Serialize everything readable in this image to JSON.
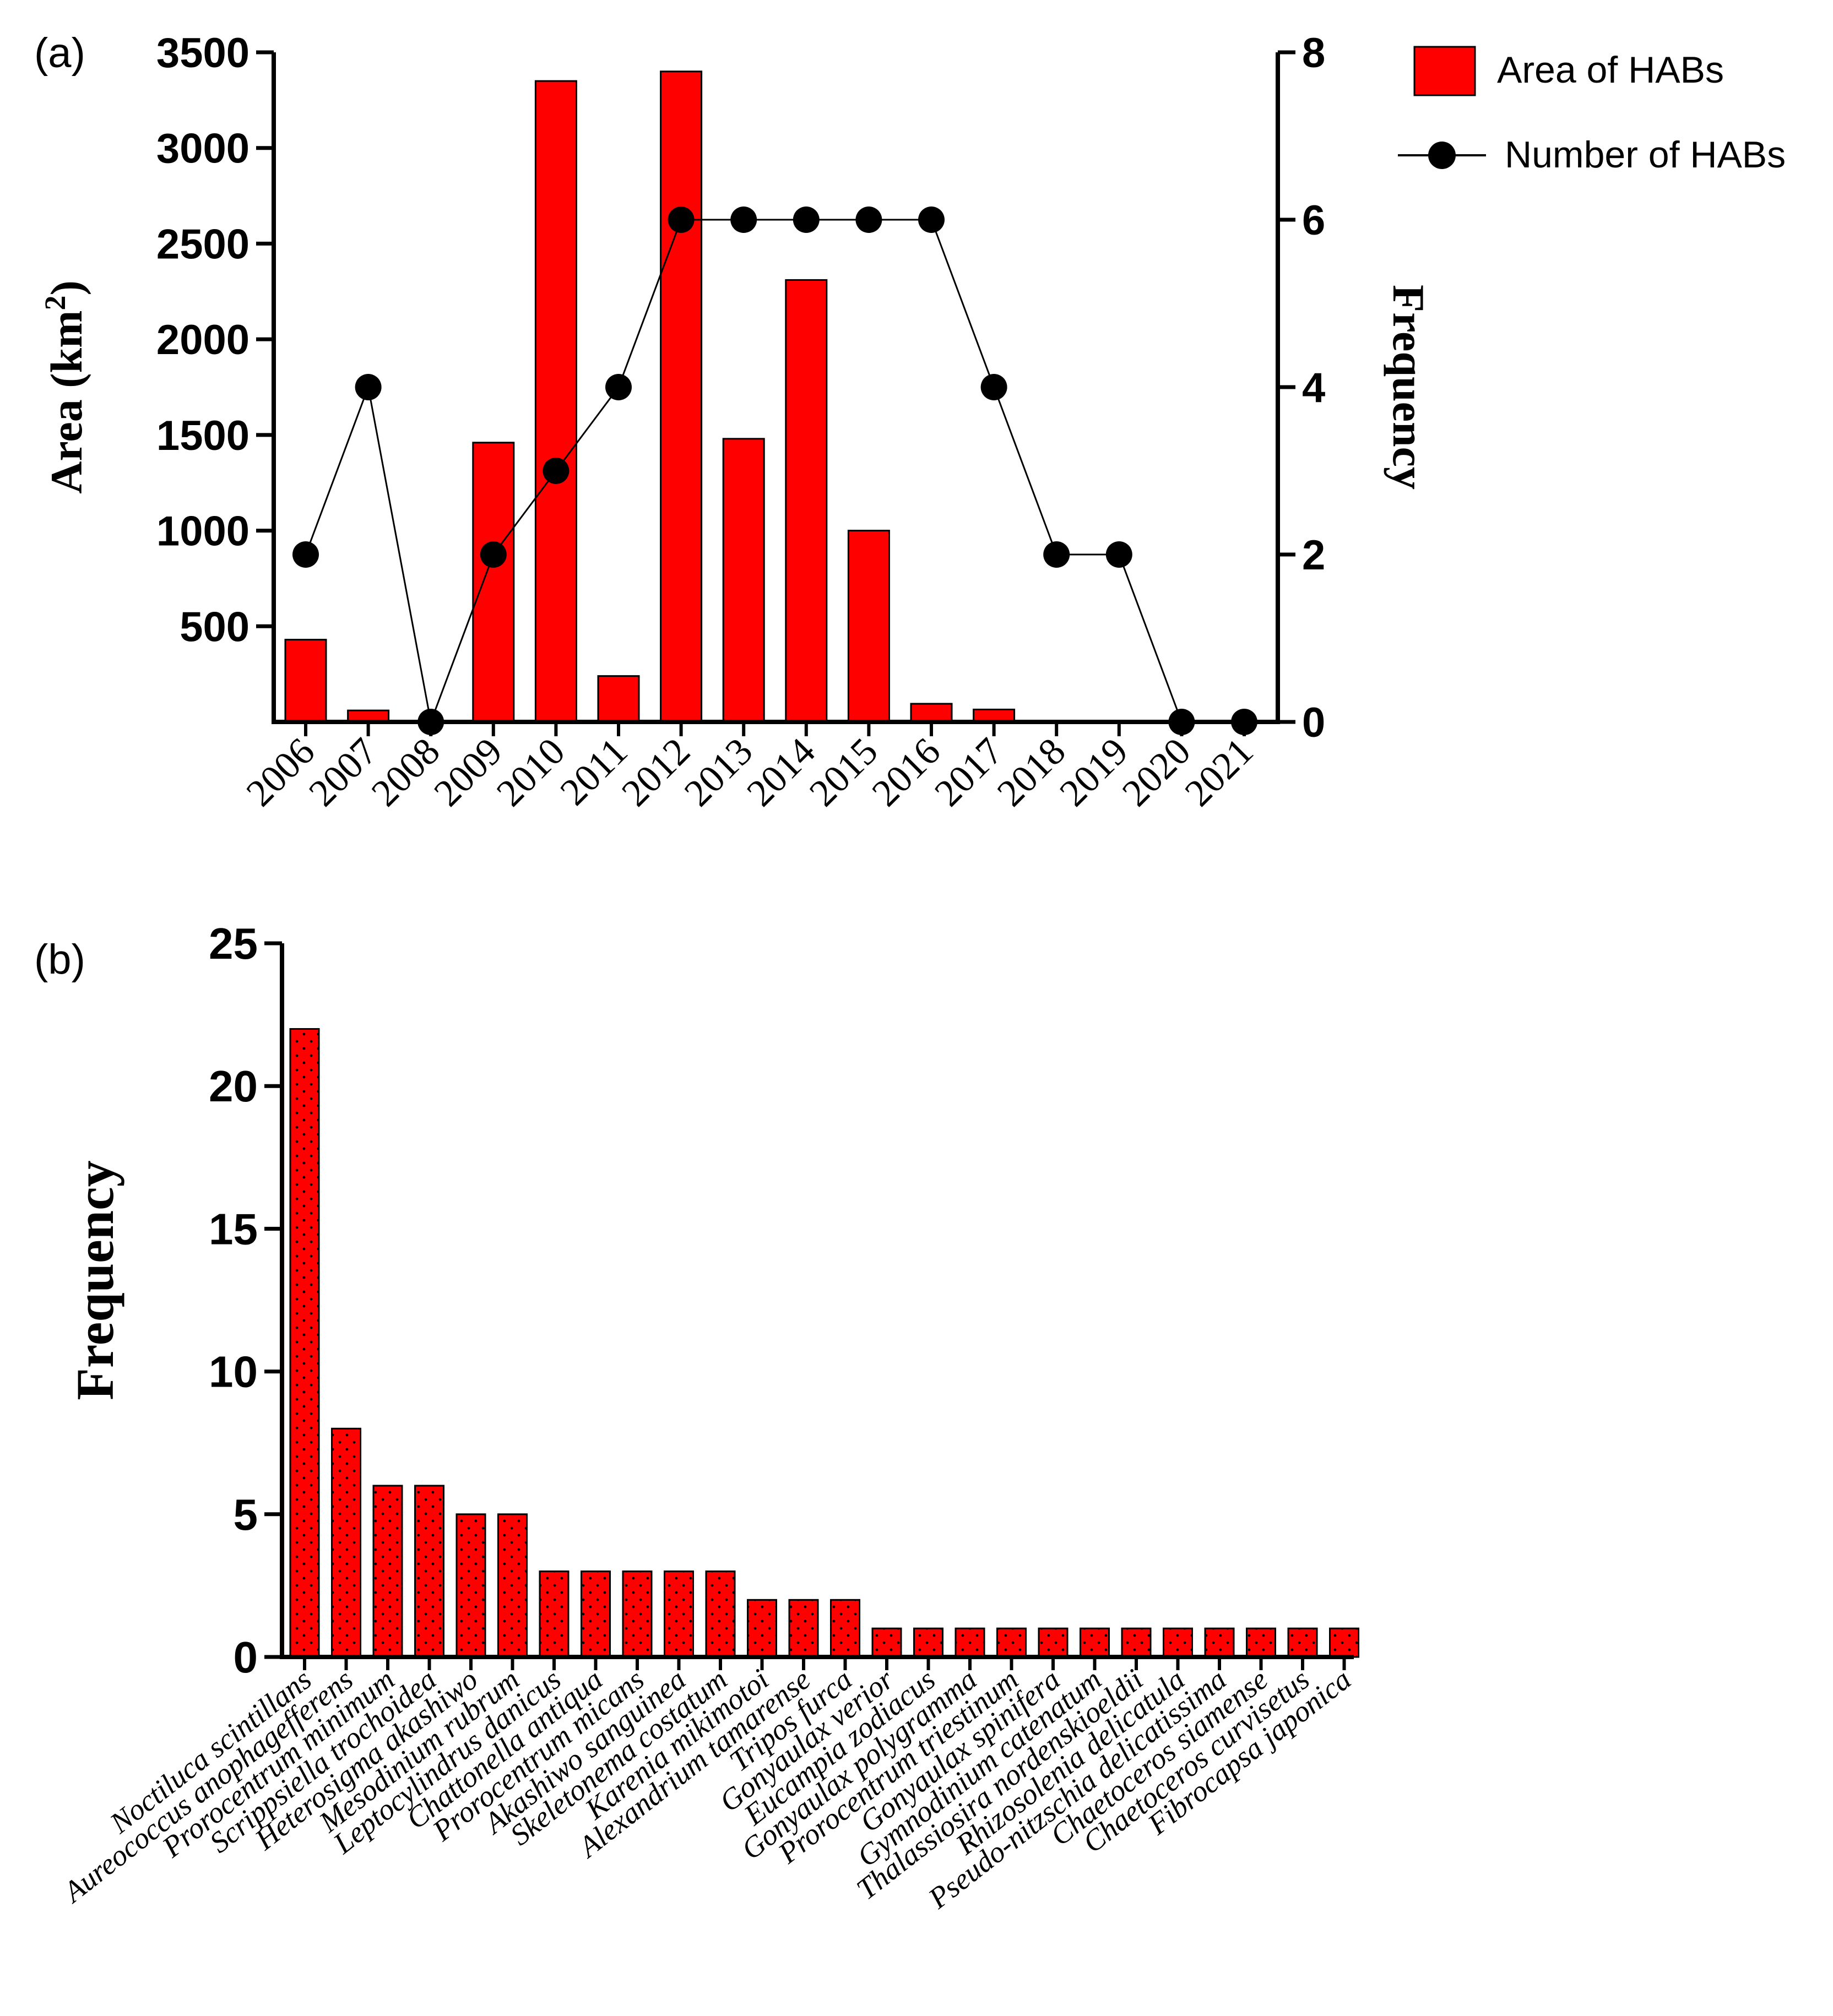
{
  "colors": {
    "bar": "#ff0000",
    "line": "#000000",
    "background": "#ffffff"
  },
  "chart_data": [
    {
      "panel_label": "(a)",
      "type": "bar",
      "categories": [
        "2006",
        "2007",
        "2008",
        "2009",
        "2010",
        "2011",
        "2012",
        "2013",
        "2014",
        "2015",
        "2016",
        "2017",
        "2018",
        "2019",
        "2020",
        "2021"
      ],
      "series": [
        {
          "name": "Area of HABs",
          "type": "bar",
          "axis": "left",
          "values": [
            430,
            60,
            0,
            1460,
            3350,
            240,
            3400,
            1480,
            2310,
            1000,
            95,
            65,
            0,
            0,
            0,
            0
          ]
        },
        {
          "name": "Number of HABs",
          "type": "line",
          "axis": "right",
          "values": [
            2,
            4,
            0,
            2,
            3,
            4,
            6,
            6,
            6,
            6,
            6,
            4,
            2,
            2,
            0,
            0
          ]
        }
      ],
      "ylabel_left": "Area (km",
      "ylabel_left_sup": "2",
      "ylabel_left_end": ")",
      "ylabel_right": "Frequency",
      "ylim_left": [
        0,
        3500
      ],
      "ylim_right": [
        0,
        8
      ],
      "yticks_left": [
        "500",
        "1000",
        "1500",
        "2000",
        "2500",
        "3000",
        "3500"
      ],
      "yticks_right": [
        "0",
        "2",
        "4",
        "6",
        "8"
      ],
      "legend": [
        "Area of HABs",
        "Number of HABs"
      ],
      "legend_position": "top-right"
    },
    {
      "panel_label": "(b)",
      "type": "bar",
      "categories": [
        "Noctiluca scintillans",
        "Aureococcus anophagefferens",
        "Prorocentrum minimum",
        "Scrippsiella trochoidea",
        "Heterosigma akashiwo",
        "Mesodinium rubrum",
        "Leptocylindrus danicus",
        "Chattonella antiqua",
        "Prorocentrum micans",
        "Akashiwo sanguinea",
        "Skeletonema costatum",
        "Karenia mikimotoi",
        "Alexandrium tamarense",
        "Tripos furca",
        "Gonyaulax verior",
        "Eucampia zodiacus",
        "Gonyaulax polygramma",
        "Prorocentrum triestinum",
        "Gonyaulax spinifera",
        "Gymnodinium catenatum",
        "Thalassiosira nordenskioeldii",
        "Rhizosolenia delicatula",
        "Pseudo-nitzschia delicatissima",
        "Chaetoceros siamense",
        "Chaetoceros curvisetus",
        "Fibrocapsa japonica"
      ],
      "values": [
        22,
        8,
        6,
        6,
        5,
        5,
        3,
        3,
        3,
        3,
        3,
        2,
        2,
        2,
        1,
        1,
        1,
        1,
        1,
        1,
        1,
        1,
        1,
        1,
        1,
        1
      ],
      "ylabel": "Frequency",
      "ylim": [
        0,
        25
      ],
      "yticks": [
        "0",
        "5",
        "10",
        "15",
        "20",
        "25"
      ]
    }
  ]
}
